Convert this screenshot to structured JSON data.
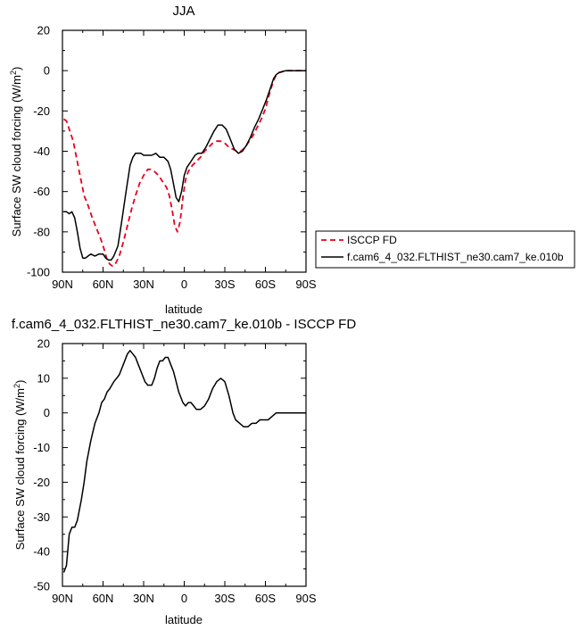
{
  "chart_data": [
    {
      "type": "line",
      "title": "JJA",
      "xlabel": "latitude",
      "ylabel_main": "Surface SW cloud forcing (W/m",
      "ylabel_sup": "2",
      "ylabel_close": ")",
      "xlim": [
        90,
        -90
      ],
      "ylim": [
        -100,
        20
      ],
      "xticks": [
        90,
        60,
        30,
        0,
        -30,
        -60,
        -90
      ],
      "xtick_labels": [
        "90N",
        "60N",
        "30N",
        "0",
        "30S",
        "60S",
        "90S"
      ],
      "yticks": [
        20,
        0,
        -20,
        -40,
        -60,
        -80,
        -100
      ],
      "ytick_labels": [
        "20",
        "0",
        "-20",
        "-40",
        "-60",
        "-80",
        "-100"
      ],
      "legend": [
        "ISCCP FD",
        "f.cam6_4_032.FLTHIST_ne30.cam7_ke.010b"
      ],
      "series": [
        {
          "name": "ISCCP FD",
          "color": "#e8001c",
          "dash": "dashed",
          "x": [
            89,
            87,
            85,
            82,
            80,
            77,
            74,
            71,
            68,
            65,
            62,
            59,
            57,
            55,
            53,
            51,
            48,
            45,
            42,
            39,
            36,
            33,
            30,
            27,
            25,
            22,
            19,
            16,
            13,
            11,
            9,
            7,
            5,
            3,
            1,
            -1,
            -3,
            -6,
            -9,
            -12,
            -15,
            -18,
            -21,
            -24,
            -27,
            -30,
            -33,
            -36,
            -39,
            -42,
            -45,
            -48,
            -51,
            -54,
            -57,
            -60,
            -62,
            -64,
            -66,
            -68,
            -70,
            -75,
            -80,
            -85,
            -90
          ],
          "y": [
            -24,
            -25,
            -29,
            -35,
            -42,
            -52,
            -62,
            -67,
            -73,
            -78,
            -83,
            -89,
            -94,
            -96,
            -97,
            -96,
            -92,
            -85,
            -77,
            -69,
            -62,
            -56,
            -52,
            -49,
            -49,
            -50,
            -52,
            -55,
            -58,
            -62,
            -69,
            -77,
            -80,
            -75,
            -63,
            -54,
            -50,
            -47,
            -45,
            -43,
            -40,
            -38,
            -36,
            -35,
            -35,
            -36,
            -38,
            -39,
            -40,
            -40,
            -38,
            -35,
            -32,
            -28,
            -24,
            -19,
            -14,
            -9,
            -5,
            -2,
            -1,
            0,
            0,
            0,
            0
          ]
        },
        {
          "name": "f.cam6_4_032.FLTHIST_ne30.cam7_ke.010b",
          "color": "#000000",
          "dash": "solid",
          "x": [
            89,
            87,
            85,
            83,
            81,
            79,
            77,
            75,
            73,
            71,
            69,
            66,
            63,
            60,
            58,
            56,
            54,
            52,
            49,
            46,
            43,
            40,
            38,
            36,
            34,
            32,
            30,
            27,
            24,
            21,
            18,
            15,
            12,
            10,
            8,
            6,
            4,
            2,
            0,
            -2,
            -4,
            -6,
            -8,
            -10,
            -13,
            -16,
            -19,
            -22,
            -25,
            -28,
            -31,
            -34,
            -37,
            -40,
            -43,
            -46,
            -49,
            -52,
            -55,
            -58,
            -61,
            -64,
            -66,
            -68,
            -70,
            -75,
            -80,
            -85,
            -90
          ],
          "y": [
            -70,
            -70,
            -71,
            -70,
            -73,
            -80,
            -88,
            -93,
            -93,
            -92,
            -91,
            -92,
            -91,
            -91,
            -93,
            -94,
            -94,
            -92,
            -87,
            -74,
            -60,
            -47,
            -43,
            -41,
            -41,
            -41,
            -42,
            -42,
            -42,
            -41,
            -43,
            -43,
            -45,
            -49,
            -56,
            -63,
            -65,
            -60,
            -52,
            -48,
            -46,
            -44,
            -42,
            -41,
            -41,
            -38,
            -34,
            -30,
            -27,
            -27,
            -29,
            -34,
            -39,
            -41,
            -40,
            -37,
            -33,
            -28,
            -24,
            -19,
            -14,
            -8,
            -4,
            -2,
            -1,
            0,
            0,
            0,
            0
          ]
        }
      ]
    },
    {
      "type": "line",
      "title": "f.cam6_4_032.FLTHIST_ne30.cam7_ke.010b - ISCCP FD",
      "xlabel": "latitude",
      "ylabel_main": "Surface SW cloud forcing (W/m",
      "ylabel_sup": "2",
      "ylabel_close": ")",
      "xlim": [
        90,
        -90
      ],
      "ylim": [
        -50,
        20
      ],
      "xticks": [
        90,
        60,
        30,
        0,
        -30,
        -60,
        -90
      ],
      "xtick_labels": [
        "90N",
        "60N",
        "30N",
        "0",
        "30S",
        "60S",
        "90S"
      ],
      "yticks": [
        20,
        10,
        0,
        -10,
        -20,
        -30,
        -40,
        -50
      ],
      "ytick_labels": [
        "20",
        "10",
        "0",
        "-10",
        "-20",
        "-30",
        "-40",
        "-50"
      ],
      "series": [
        {
          "name": "f.cam6_4_032.FLTHIST_ne30.cam7_ke.010b - ISCCP FD",
          "color": "#000000",
          "dash": "solid",
          "x": [
            89,
            87,
            85,
            83,
            81,
            79,
            76,
            74,
            72,
            69,
            66,
            63,
            61,
            59,
            57,
            55,
            52,
            50,
            48,
            45,
            42,
            40,
            38,
            36,
            34,
            31,
            29,
            27,
            24,
            22,
            20,
            18,
            16,
            14,
            12,
            10,
            8,
            6,
            4,
            1,
            -1,
            -3,
            -5,
            -7,
            -9,
            -12,
            -15,
            -18,
            -21,
            -24,
            -27,
            -30,
            -33,
            -36,
            -38,
            -41,
            -44,
            -47,
            -50,
            -53,
            -56,
            -59,
            -62,
            -65,
            -68,
            -72,
            -76,
            -80,
            -85,
            -90
          ],
          "y": [
            -46,
            -44,
            -35,
            -33,
            -33,
            -31,
            -25,
            -20,
            -14,
            -8,
            -3,
            0,
            3,
            4,
            6,
            7,
            9,
            10,
            11,
            14,
            17,
            18,
            17,
            16,
            14,
            11,
            9,
            8,
            8,
            10,
            13,
            15,
            15,
            16,
            16,
            14,
            12,
            9,
            6,
            3,
            2,
            3,
            3,
            2,
            1,
            1,
            2,
            4,
            7,
            9,
            10,
            9,
            5,
            0,
            -2,
            -3,
            -4,
            -4,
            -3,
            -3,
            -2,
            -2,
            -2,
            -1,
            0,
            0,
            0,
            0,
            0,
            0
          ]
        }
      ]
    }
  ]
}
